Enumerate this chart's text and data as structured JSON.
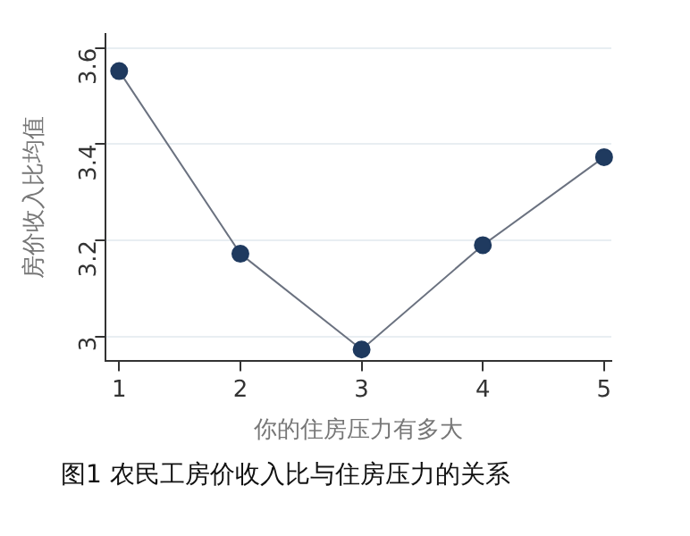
{
  "chart_data": {
    "type": "line",
    "xlabel": "你的住房压力有多大",
    "ylabel": "房价收入比均值",
    "annotations": [
      "图1 农民工房价收入比与住房压力的关系"
    ],
    "x": [
      1,
      2,
      3,
      4,
      5
    ],
    "series": [
      {
        "color": "#1f3a5f",
        "values": [
          3.552,
          3.172,
          2.973,
          3.19,
          3.373
        ]
      }
    ],
    "xlim": [
      0.89,
      5.06
    ],
    "xticks": [
      1,
      2,
      3,
      4,
      5
    ],
    "ylim": [
      2.95,
      3.63
    ],
    "yticks": [
      3,
      3.2,
      3.4,
      3.6
    ],
    "grid": "y",
    "legend": false,
    "marker": "circle",
    "line_style": "solid"
  }
}
